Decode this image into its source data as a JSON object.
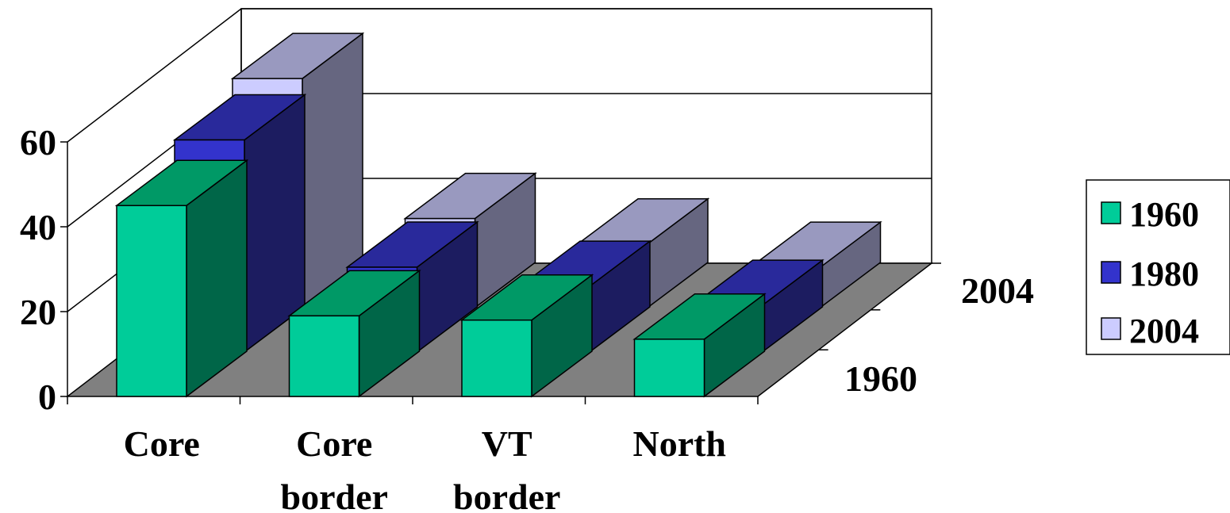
{
  "chart_data": {
    "type": "bar",
    "subtype": "3d-column",
    "title": "",
    "xlabel": "",
    "ylabel": "",
    "categories": [
      {
        "lines": [
          "Core"
        ]
      },
      {
        "lines": [
          "Core",
          "border"
        ]
      },
      {
        "lines": [
          "VT",
          "border"
        ]
      },
      {
        "lines": [
          "North"
        ]
      }
    ],
    "series": [
      {
        "name": "1960",
        "values": [
          45,
          19,
          18,
          13.5
        ]
      },
      {
        "name": "1980",
        "values": [
          50,
          20,
          15.5,
          11
        ]
      },
      {
        "name": "2004",
        "values": [
          54,
          21,
          15,
          9.5
        ]
      }
    ],
    "ylim": [
      0,
      60
    ],
    "yticks": [
      0,
      20,
      40,
      60
    ],
    "depth_axis_labels": [
      "1960",
      "2004"
    ],
    "grid": true,
    "legend_position": "right",
    "colors": {
      "1960": {
        "front": "#00cc99",
        "top": "#009966",
        "side": "#006648"
      },
      "1980": {
        "front": "#3333cc",
        "top": "#29299b",
        "side": "#1c1c60"
      },
      "2004": {
        "front": "#ccccff",
        "top": "#9999bf",
        "side": "#666680"
      },
      "floor": "#808080",
      "outline": "#000000",
      "wall": "#ffffff"
    }
  }
}
